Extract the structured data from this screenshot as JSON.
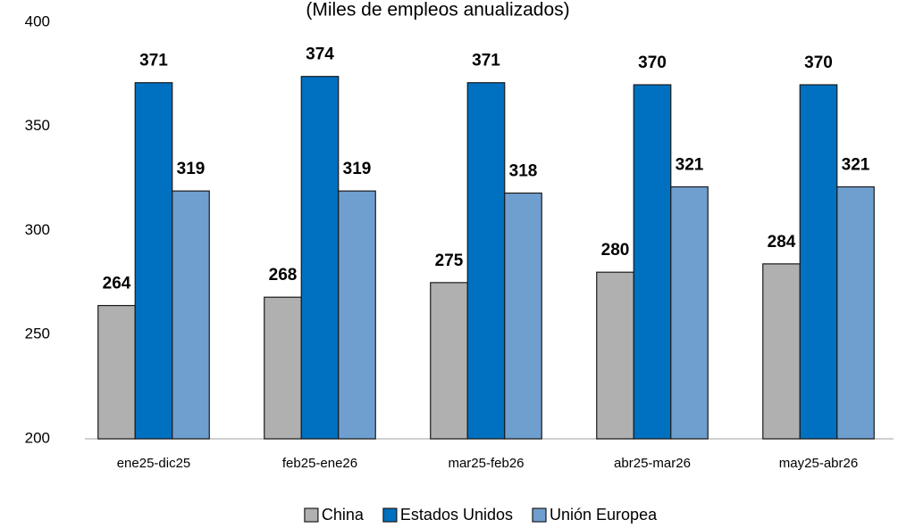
{
  "chart_data": {
    "type": "bar",
    "subtitle": "(Miles de empleos anualizados)",
    "categories": [
      "ene25-dic25",
      "feb25-ene26",
      "mar25-feb26",
      "abr25-mar26",
      "may25-abr26"
    ],
    "series": [
      {
        "name": "China",
        "color": "#b0b0b0",
        "values": [
          264,
          268,
          275,
          280,
          284
        ]
      },
      {
        "name": "Estados Unidos",
        "color": "#0070c0",
        "values": [
          371,
          374,
          371,
          370,
          370
        ]
      },
      {
        "name": "Unión Europea",
        "color": "#6e9fcf",
        "values": [
          319,
          319,
          318,
          321,
          321
        ]
      }
    ],
    "ylim": [
      200,
      400
    ],
    "yticks": [
      200,
      250,
      300,
      350,
      400
    ],
    "grid": false,
    "legend": "bottom"
  }
}
